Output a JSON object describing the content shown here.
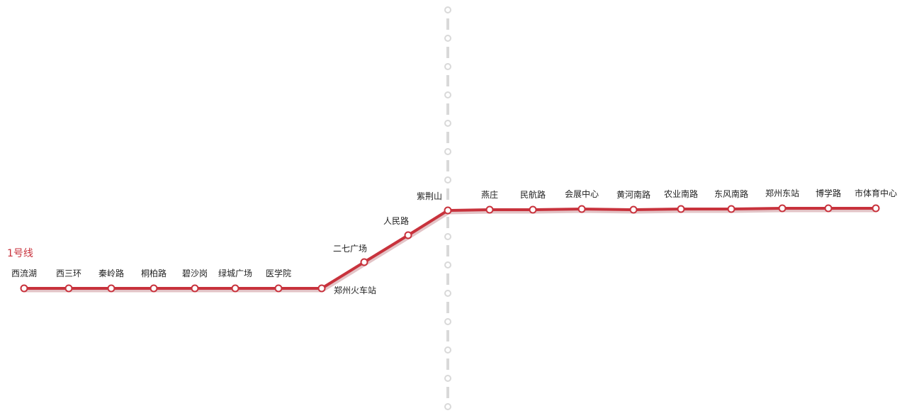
{
  "line": {
    "name": "1号线",
    "color": "#c8323c",
    "shadow_color": "#e3c4c7",
    "stations": [
      "西流湖",
      "西三环",
      "秦岭路",
      "桐柏路",
      "碧沙岗",
      "绿城广场",
      "医学院",
      "郑州火车站",
      "二七广场",
      "人民路",
      "紫荆山",
      "燕庄",
      "民航路",
      "会展中心",
      "黄河南路",
      "农业南路",
      "东风南路",
      "郑州东站",
      "博学路",
      "市体育中心"
    ]
  },
  "crossing_line": {
    "color": "#d9d9d9",
    "station_count": 15
  }
}
